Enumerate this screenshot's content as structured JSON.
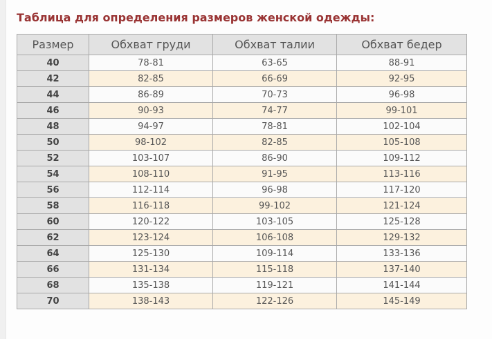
{
  "page": {
    "title": "Таблица для определения размеров женской одежды:"
  },
  "colors": {
    "title": "#993333",
    "header_bg": "#e2e2e2",
    "size_col_bg": "#e2e2e2",
    "row_plain_bg": "#fbfbfb",
    "row_alt_bg": "#fcf1de",
    "border": "#a8a8a8",
    "text": "#555555"
  },
  "table": {
    "headers": [
      "Размер",
      "Обхват груди",
      "Обхват талии",
      "Обхват бедер"
    ],
    "rows": [
      {
        "size": "40",
        "chest": "78-81",
        "waist": "63-65",
        "hips": "88-91"
      },
      {
        "size": "42",
        "chest": "82-85",
        "waist": "66-69",
        "hips": "92-95"
      },
      {
        "size": "44",
        "chest": "86-89",
        "waist": "70-73",
        "hips": "96-98"
      },
      {
        "size": "46",
        "chest": "90-93",
        "waist": "74-77",
        "hips": "99-101"
      },
      {
        "size": "48",
        "chest": "94-97",
        "waist": "78-81",
        "hips": "102-104"
      },
      {
        "size": "50",
        "chest": "98-102",
        "waist": "82-85",
        "hips": "105-108"
      },
      {
        "size": "52",
        "chest": "103-107",
        "waist": "86-90",
        "hips": "109-112"
      },
      {
        "size": "54",
        "chest": "108-110",
        "waist": "91-95",
        "hips": "113-116"
      },
      {
        "size": "56",
        "chest": "112-114",
        "waist": "96-98",
        "hips": "117-120"
      },
      {
        "size": "58",
        "chest": "116-118",
        "waist": "99-102",
        "hips": "121-124"
      },
      {
        "size": "60",
        "chest": "120-122",
        "waist": "103-105",
        "hips": "125-128"
      },
      {
        "size": "62",
        "chest": "123-124",
        "waist": "106-108",
        "hips": "129-132"
      },
      {
        "size": "64",
        "chest": "125-130",
        "waist": "109-114",
        "hips": "133-136"
      },
      {
        "size": "66",
        "chest": "131-134",
        "waist": "115-118",
        "hips": "137-140"
      },
      {
        "size": "68",
        "chest": "135-138",
        "waist": "119-121",
        "hips": "141-144"
      },
      {
        "size": "70",
        "chest": "138-143",
        "waist": "122-126",
        "hips": "145-149"
      }
    ]
  }
}
